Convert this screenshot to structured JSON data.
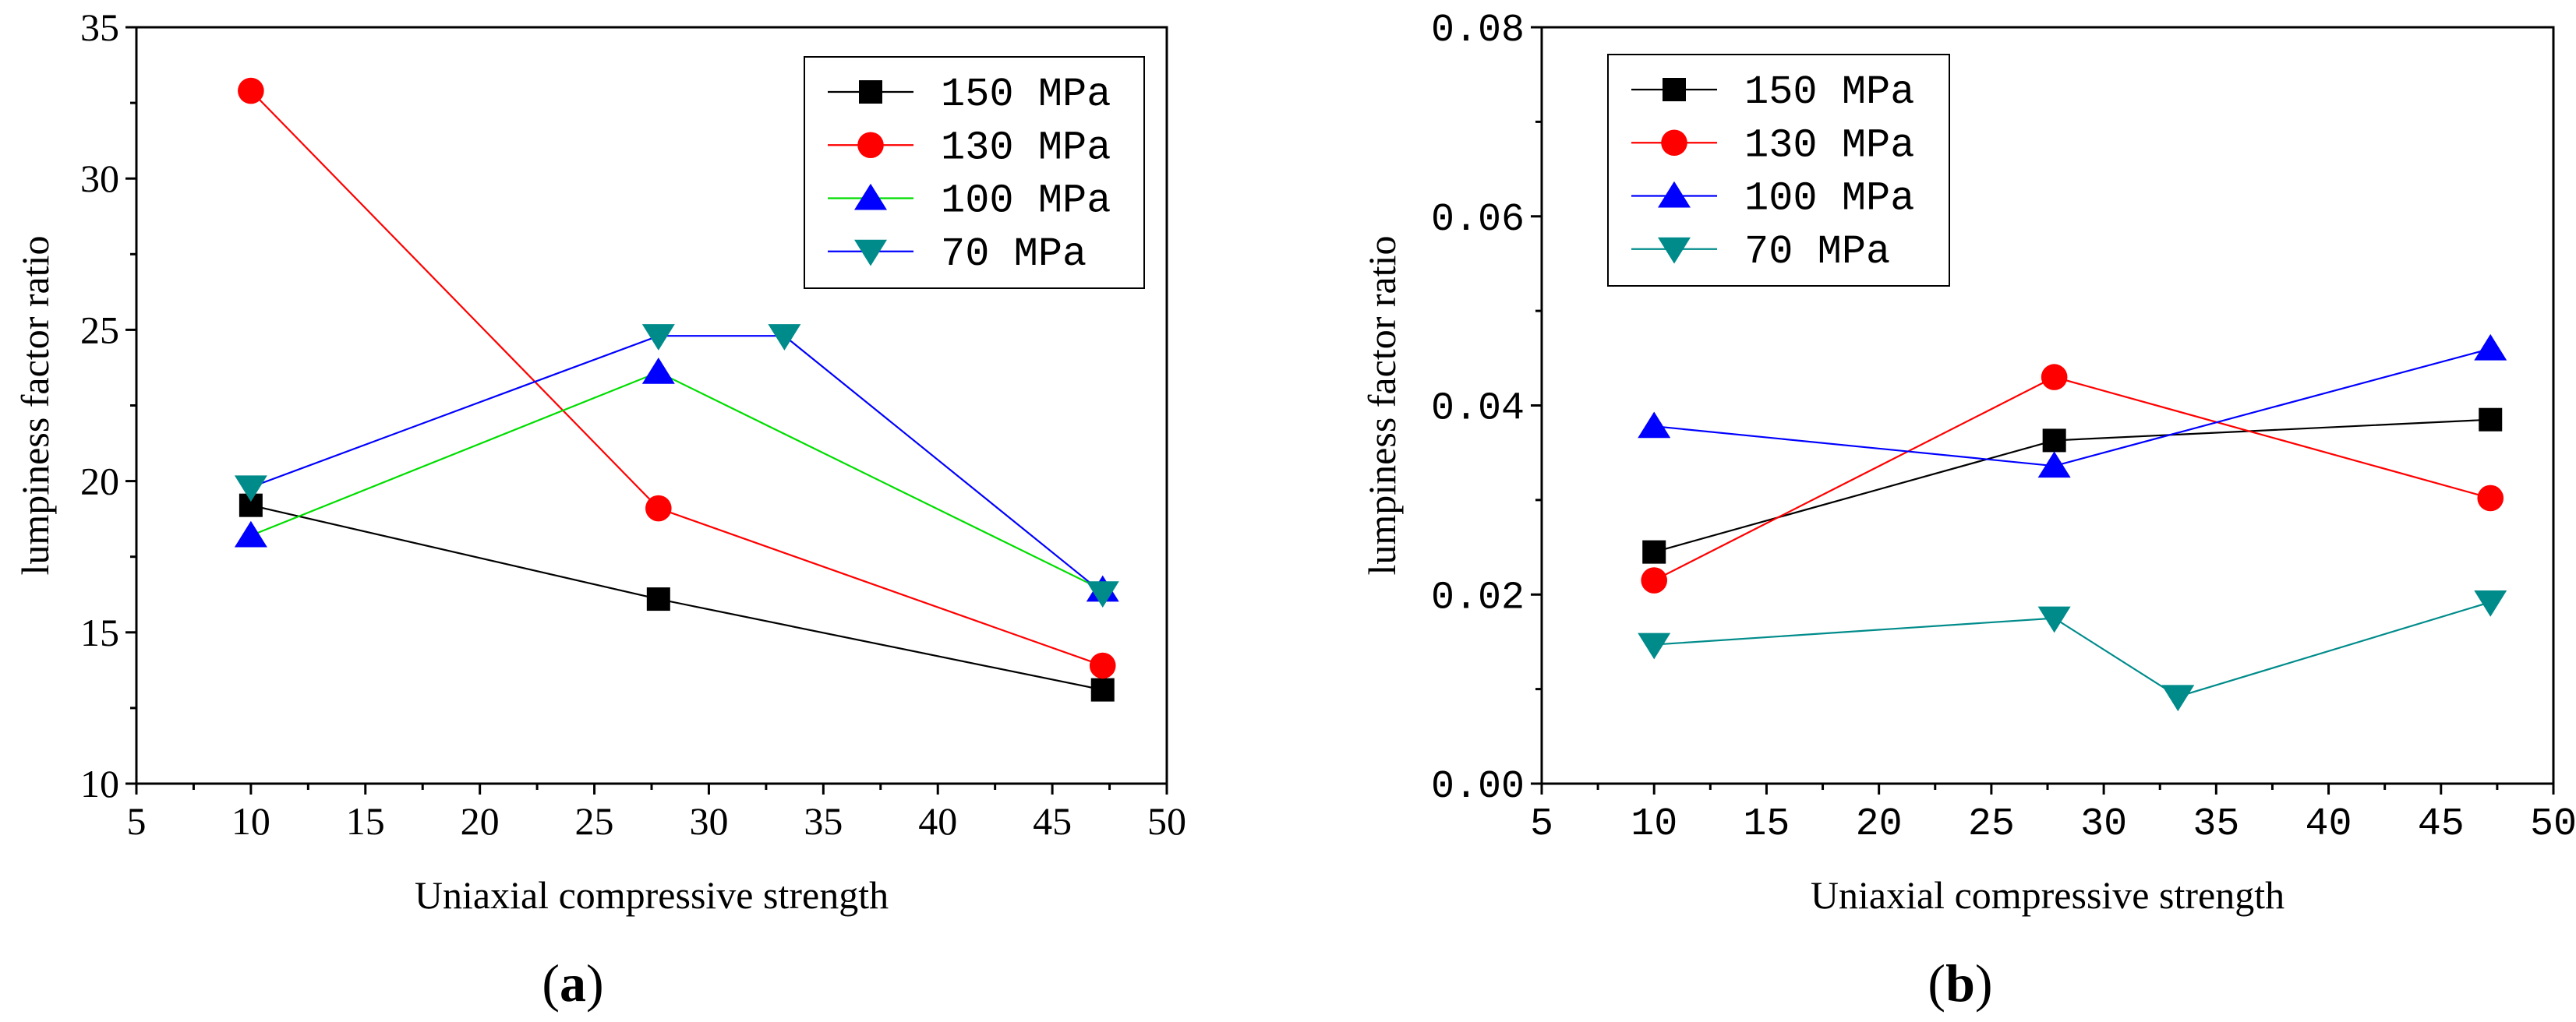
{
  "chart_data": [
    {
      "type": "line",
      "panel_label": "a",
      "xlabel": "Uniaxial compressive strength",
      "ylabel": "lumpiness factor ratio",
      "xlim": [
        5,
        50
      ],
      "ylim": [
        10,
        35
      ],
      "xticks": [
        "5",
        "10",
        "15",
        "20",
        "25",
        "30",
        "35",
        "40",
        "45",
        "50"
      ],
      "yticks": [
        "10",
        "15",
        "20",
        "25",
        "30",
        "35"
      ],
      "legend_position": "top-right",
      "series": [
        {
          "name": "150 MPa",
          "color": "#000000",
          "marker": "square",
          "x": [
            10,
            27.8,
            47.2
          ],
          "y": [
            19.2,
            16.1,
            13.1
          ]
        },
        {
          "name": "130 MPa",
          "color": "#ff0000",
          "marker": "circle",
          "x": [
            10,
            27.8,
            47.2
          ],
          "y": [
            32.9,
            19.1,
            13.9
          ]
        },
        {
          "name": "100 MPa",
          "color": "#00dd00",
          "marker": "triangle-up",
          "marker_color": "#0000ff",
          "x": [
            10,
            27.8,
            47.2
          ],
          "y": [
            18.2,
            23.6,
            16.4
          ]
        },
        {
          "name": "70 MPa",
          "color": "#0000ff",
          "marker": "triangle-down",
          "marker_color": "#008b8b",
          "x": [
            10,
            27.8,
            33.3,
            47.2
          ],
          "y": [
            19.8,
            24.8,
            24.8,
            16.3
          ]
        }
      ]
    },
    {
      "type": "line",
      "panel_label": "b",
      "xlabel": "Uniaxial compressive strength",
      "ylabel": "lumpiness factor ratio",
      "xlim": [
        5,
        50
      ],
      "ylim": [
        0,
        0.08
      ],
      "xticks": [
        "5",
        "10",
        "15",
        "20",
        "25",
        "30",
        "35",
        "40",
        "45",
        "50"
      ],
      "yticks": [
        "0.00",
        "0.02",
        "0.04",
        "0.06",
        "0.08"
      ],
      "legend_position": "top-left",
      "series": [
        {
          "name": "150 MPa",
          "color": "#000000",
          "marker": "square",
          "x": [
            10,
            27.8,
            47.2
          ],
          "y": [
            0.0245,
            0.0363,
            0.0385
          ]
        },
        {
          "name": "130 MPa",
          "color": "#ff0000",
          "marker": "circle",
          "x": [
            10,
            27.8,
            47.2
          ],
          "y": [
            0.0215,
            0.043,
            0.0302
          ]
        },
        {
          "name": "100 MPa",
          "color": "#0000ff",
          "marker": "triangle-up",
          "x": [
            10,
            27.8,
            47.2
          ],
          "y": [
            0.0378,
            0.0336,
            0.046
          ]
        },
        {
          "name": "70 MPa",
          "color": "#008b8b",
          "marker": "triangle-down",
          "x": [
            10,
            27.8,
            33.3,
            47.2
          ],
          "y": [
            0.0147,
            0.0175,
            0.0092,
            0.0192
          ]
        }
      ]
    }
  ]
}
